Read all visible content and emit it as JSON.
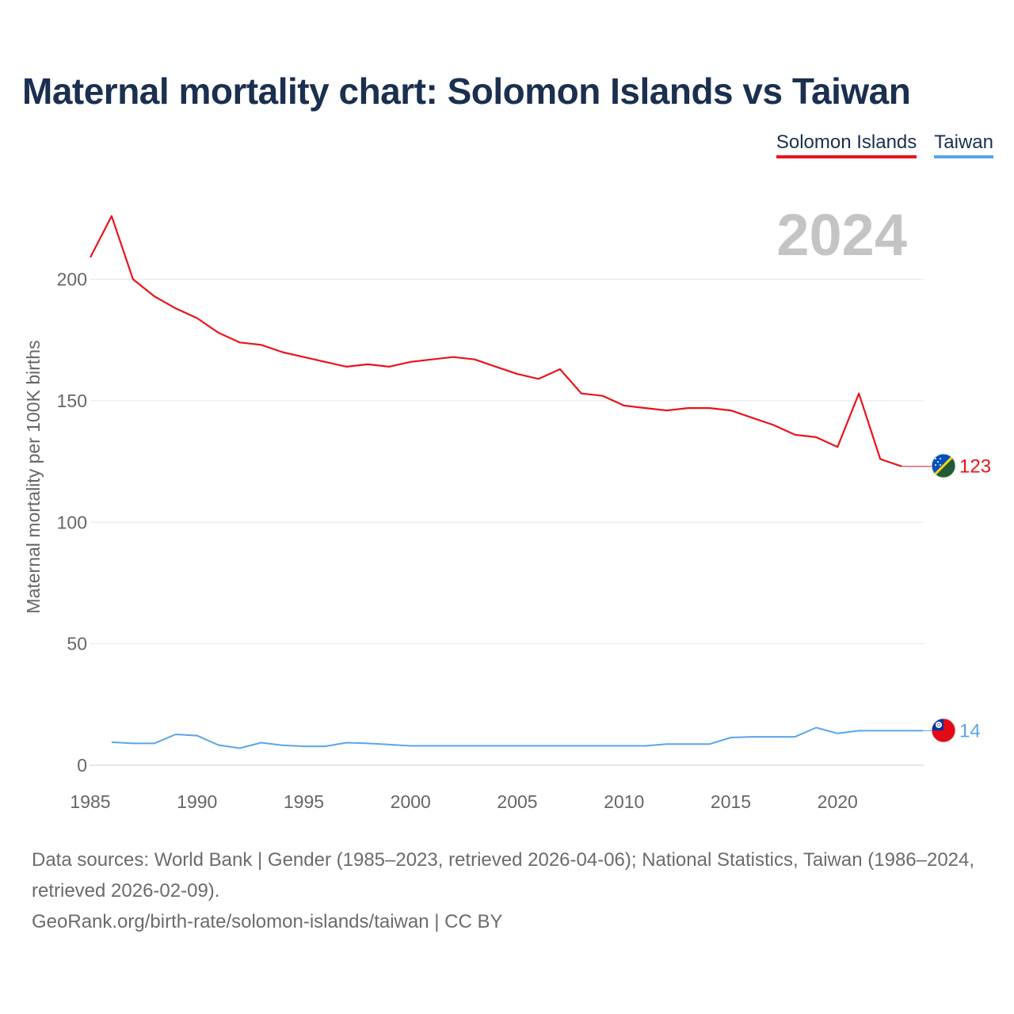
{
  "title": "Maternal mortality chart: Solomon Islands vs Taiwan",
  "legend": [
    {
      "label": "Solomon Islands",
      "color": "#e8141a"
    },
    {
      "label": "Taiwan",
      "color": "#5aa5e8"
    }
  ],
  "year_watermark": "2024",
  "sources_line1": "Data sources: World Bank | Gender (1985–2023, retrieved 2026-04-06); National Statistics, Taiwan (1986–2024, retrieved 2026-02-09).",
  "sources_line2": "GeoRank.org/birth-rate/solomon-islands/taiwan | CC BY",
  "chart_data": {
    "type": "line",
    "title": "Maternal mortality chart: Solomon Islands vs Taiwan",
    "xlabel": "",
    "ylabel": "Maternal mortality per 100K births",
    "xlim": [
      1985,
      2024
    ],
    "ylim": [
      0,
      230
    ],
    "xticks": [
      1985,
      1990,
      1995,
      2000,
      2005,
      2010,
      2015,
      2020
    ],
    "yticks": [
      0,
      50,
      100,
      150,
      200
    ],
    "grid": true,
    "series": [
      {
        "name": "Solomon Islands",
        "color": "#e8141a",
        "end_label": "123",
        "flag": "solomon-islands-flag",
        "x": [
          1985,
          1986,
          1987,
          1988,
          1989,
          1990,
          1991,
          1992,
          1993,
          1994,
          1995,
          1996,
          1997,
          1998,
          1999,
          2000,
          2001,
          2002,
          2003,
          2004,
          2005,
          2006,
          2007,
          2008,
          2009,
          2010,
          2011,
          2012,
          2013,
          2014,
          2015,
          2016,
          2017,
          2018,
          2019,
          2020,
          2021,
          2022,
          2023
        ],
        "y": [
          209,
          226,
          200,
          193,
          188,
          184,
          178,
          174,
          173,
          170,
          168,
          166,
          164,
          165,
          164,
          166,
          167,
          168,
          167,
          164,
          161,
          159,
          163,
          153,
          152,
          148,
          147,
          146,
          147,
          147,
          146,
          143,
          140,
          136,
          135,
          131,
          153,
          126,
          123
        ]
      },
      {
        "name": "Taiwan",
        "color": "#5aa5e8",
        "end_label": "14",
        "flag": "taiwan-flag",
        "x": [
          1986,
          1987,
          1988,
          1989,
          1990,
          1991,
          1992,
          1993,
          1994,
          1995,
          1996,
          1997,
          1998,
          1999,
          2000,
          2001,
          2002,
          2003,
          2004,
          2005,
          2006,
          2007,
          2008,
          2009,
          2010,
          2011,
          2012,
          2013,
          2014,
          2015,
          2016,
          2017,
          2018,
          2019,
          2020,
          2021,
          2022,
          2023,
          2024
        ],
        "y": [
          9.5,
          9,
          9,
          12.7,
          12.2,
          8.3,
          7,
          9.3,
          8.2,
          7.8,
          7.8,
          9.3,
          9,
          8.5,
          8,
          8,
          8,
          8,
          8,
          8,
          8,
          8,
          8,
          8,
          8,
          8,
          8.7,
          8.7,
          8.7,
          11.4,
          11.7,
          11.7,
          11.7,
          15.5,
          13.1,
          14.2,
          14.2,
          14.2,
          14.2
        ]
      }
    ]
  }
}
